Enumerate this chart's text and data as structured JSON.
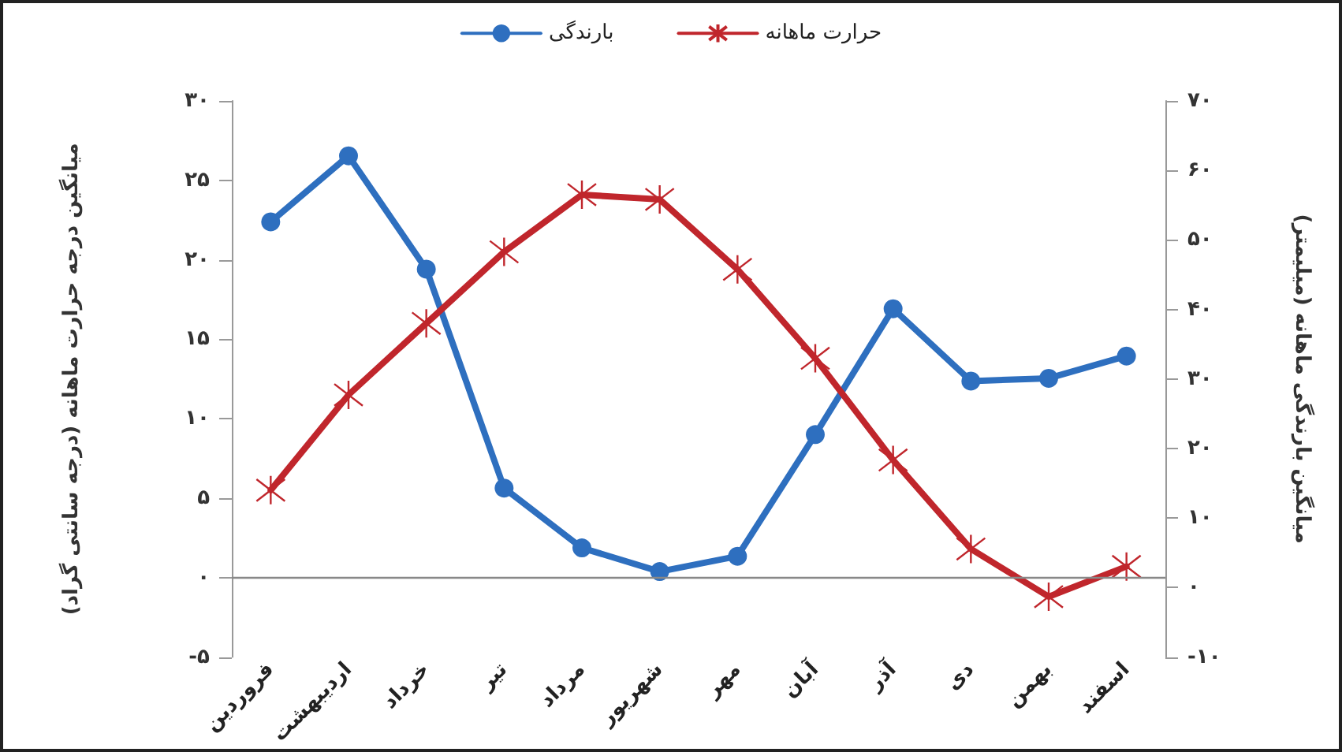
{
  "chart_data": {
    "type": "line",
    "ylabel": "میانگین درجه حرارت ماهانه (درجه سانتی گراد)",
    "y2label": "میانگین بارندگی ماهانه (میلیمتر)",
    "categories": [
      "فروردین",
      "اردیبهشت",
      "خرداد",
      "تیر",
      "مرداد",
      "شهریور",
      "مهر",
      "آبان",
      "آذر",
      "دی",
      "بهمن",
      "اسفند"
    ],
    "series": [
      {
        "name": "بارندگی",
        "color": "#2e6fbf",
        "axis": "y2",
        "marker": "circle",
        "values": [
          52.6,
          62.1,
          45.8,
          14.3,
          5.7,
          2.3,
          4.5,
          22.0,
          40.1,
          29.7,
          30.1,
          33.3
        ]
      },
      {
        "name": "حرارت ماهانه",
        "color": "#c0262c",
        "axis": "y",
        "marker": "cross",
        "values": [
          5.5,
          11.5,
          16.0,
          20.5,
          24.1,
          23.8,
          19.4,
          13.8,
          7.4,
          1.8,
          -1.2,
          0.7
        ]
      }
    ],
    "ylim": [
      -5,
      30
    ],
    "yticks": [
      {
        "value": -5,
        "label": "-۵"
      },
      {
        "value": 0,
        "label": "۰"
      },
      {
        "value": 5,
        "label": "۵"
      },
      {
        "value": 10,
        "label": "۱۰"
      },
      {
        "value": 15,
        "label": "۱۵"
      },
      {
        "value": 20,
        "label": "۲۰"
      },
      {
        "value": 25,
        "label": "۲۵"
      },
      {
        "value": 30,
        "label": "۳۰"
      }
    ],
    "y2lim": [
      -10,
      70
    ],
    "y2ticks": [
      {
        "value": -10,
        "label": "-۱۰"
      },
      {
        "value": 0,
        "label": "۰"
      },
      {
        "value": 10,
        "label": "۱۰"
      },
      {
        "value": 20,
        "label": "۲۰"
      },
      {
        "value": 30,
        "label": "۳۰"
      },
      {
        "value": 40,
        "label": "۴۰"
      },
      {
        "value": 50,
        "label": "۵۰"
      },
      {
        "value": 60,
        "label": "۶۰"
      },
      {
        "value": 70,
        "label": "۷۰"
      }
    ],
    "ref_lines": [
      {
        "axis": "y",
        "value": 0,
        "color": "#888888"
      }
    ],
    "legend": "top",
    "line_style": "solid"
  }
}
